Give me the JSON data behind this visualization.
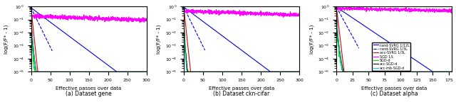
{
  "panels": [
    {
      "title": "(a) Dataset gene",
      "xlim": [
        0,
        300
      ],
      "ylim_log": [
        -5,
        0
      ],
      "xlabel": "Effective passes over data",
      "ylabel": "log(F/F* - 1)",
      "curves": [
        {
          "label": "rand-SVRG 1/12L",
          "color": "#0000dd",
          "style": "solid",
          "x_end": 300,
          "log_y0": -0.1,
          "log_slope": -0.022,
          "noise_sigma": 0.0,
          "high_noise": false
        },
        {
          "label": "rand-SVRG 1/3L",
          "color": "#0000dd",
          "style": "dashed",
          "x_end": 55,
          "log_y0": -0.1,
          "log_slope": -0.06,
          "noise_sigma": 0.0,
          "high_noise": false
        },
        {
          "label": "acc-SVRG 1/3L",
          "color": "#dd0000",
          "style": "solid",
          "x_end": 18,
          "log_y0": -0.1,
          "log_slope": -0.28,
          "noise_sigma": 0.0,
          "high_noise": false
        },
        {
          "label": "SGD 1/L",
          "color": "#ff00ff",
          "style": "solid",
          "x_end": 300,
          "log_y0": -0.75,
          "log_slope": -0.001,
          "noise_sigma": 0.08,
          "high_noise": true
        },
        {
          "label": "SGD-d",
          "color": "#00dd00",
          "style": "solid",
          "x_end": 300,
          "log_y0": -0.05,
          "log_slope": -0.009,
          "noise_sigma": 0.18,
          "high_noise": true,
          "plaw": true,
          "plaw_exp": 0.5
        },
        {
          "label": "acc-SGD-d",
          "color": "#000000",
          "style": "solid",
          "x_end": 300,
          "log_y0": -0.05,
          "log_slope": -0.009,
          "noise_sigma": 0.01,
          "high_noise": false,
          "plaw": true,
          "plaw_exp": 0.55
        },
        {
          "label": "acc-mb-SGD-d",
          "color": "#00cccc",
          "style": "solid",
          "x_end": 300,
          "log_y0": -0.05,
          "log_slope": -0.011,
          "noise_sigma": 0.01,
          "high_noise": false,
          "plaw": true,
          "plaw_exp": 0.6
        }
      ]
    },
    {
      "title": "(b) Dataset ckn-cifar",
      "xlim": [
        0,
        300
      ],
      "ylim_log": [
        -5,
        0
      ],
      "xlabel": "Effective passes over data",
      "ylabel": "log(F/F* - 1)",
      "curves": [
        {
          "label": "rand-SVRG 1/12L",
          "color": "#0000dd",
          "style": "solid",
          "x_end": 300,
          "log_y0": -0.05,
          "log_slope": -0.022,
          "noise_sigma": 0.0,
          "high_noise": false
        },
        {
          "label": "rand-SVRG 1/3L",
          "color": "#0000dd",
          "style": "dashed",
          "x_end": 55,
          "log_y0": -0.05,
          "log_slope": -0.06,
          "noise_sigma": 0.0,
          "high_noise": false
        },
        {
          "label": "acc-SVRG 1/3L",
          "color": "#dd0000",
          "style": "solid",
          "x_end": 18,
          "log_y0": -0.05,
          "log_slope": -0.28,
          "noise_sigma": 0.0,
          "high_noise": false
        },
        {
          "label": "SGD 1/L",
          "color": "#ff00ff",
          "style": "solid",
          "x_end": 300,
          "log_y0": -0.35,
          "log_slope": -0.001,
          "noise_sigma": 0.07,
          "high_noise": true
        },
        {
          "label": "SGD-d",
          "color": "#00dd00",
          "style": "solid",
          "x_end": 300,
          "log_y0": -0.1,
          "log_slope": -0.009,
          "noise_sigma": 0.2,
          "high_noise": true,
          "plaw": true,
          "plaw_exp": 0.5
        },
        {
          "label": "acc-SGD-d",
          "color": "#000000",
          "style": "solid",
          "x_end": 300,
          "log_y0": -0.1,
          "log_slope": -0.009,
          "noise_sigma": 0.01,
          "high_noise": false,
          "plaw": true,
          "plaw_exp": 0.5
        },
        {
          "label": "acc-mb-SGD-d",
          "color": "#00cccc",
          "style": "solid",
          "x_end": 300,
          "log_y0": -0.1,
          "log_slope": -0.012,
          "noise_sigma": 0.01,
          "high_noise": false,
          "plaw": true,
          "plaw_exp": 0.55
        }
      ]
    },
    {
      "title": "(c) Dataset alpha",
      "xlim": [
        0,
        180
      ],
      "ylim_log": [
        -5,
        0
      ],
      "xlabel": "Effective passes over data",
      "ylabel": "log(F/F* - 1)",
      "curves": [
        {
          "label": "rand-SVRG 1/12L",
          "color": "#0000dd",
          "style": "solid",
          "x_end": 180,
          "log_y0": -0.05,
          "log_slope": -0.033,
          "noise_sigma": 0.0,
          "high_noise": false
        },
        {
          "label": "rand-SVRG 1/3L",
          "color": "#0000dd",
          "style": "dashed",
          "x_end": 35,
          "log_y0": -0.05,
          "log_slope": -0.09,
          "noise_sigma": 0.0,
          "high_noise": false
        },
        {
          "label": "acc-SVRG 1/3L",
          "color": "#dd0000",
          "style": "solid",
          "x_end": 12,
          "log_y0": -0.05,
          "log_slope": -0.42,
          "noise_sigma": 0.0,
          "high_noise": false
        },
        {
          "label": "SGD 1/L",
          "color": "#ff00ff",
          "style": "solid",
          "x_end": 180,
          "log_y0": -0.15,
          "log_slope": -0.001,
          "noise_sigma": 0.06,
          "high_noise": true
        },
        {
          "label": "SGD-d",
          "color": "#00dd00",
          "style": "solid",
          "x_end": 180,
          "log_y0": -0.05,
          "log_slope": -0.012,
          "noise_sigma": 0.2,
          "high_noise": true,
          "plaw": true,
          "plaw_exp": 0.5
        },
        {
          "label": "acc-SGD-d",
          "color": "#000000",
          "style": "solid",
          "x_end": 180,
          "log_y0": -0.05,
          "log_slope": -0.012,
          "noise_sigma": 0.01,
          "high_noise": false,
          "plaw": true,
          "plaw_exp": 0.52
        },
        {
          "label": "acc-mb-SGD-d",
          "color": "#00cccc",
          "style": "solid",
          "x_end": 180,
          "log_y0": -0.05,
          "log_slope": -0.015,
          "noise_sigma": 0.01,
          "high_noise": false,
          "plaw": true,
          "plaw_exp": 0.58
        }
      ]
    }
  ],
  "legend_labels": [
    "rand-SVRG 1/12L",
    "rand-SVRG 1/3L",
    "acc-SVRG 1/3L",
    "SGD 1/L",
    "SGD-d",
    "acc-SGD-d",
    "acc-mb-SGD-d"
  ],
  "legend_colors": [
    "#0000dd",
    "#0000dd",
    "#dd0000",
    "#ff00ff",
    "#00dd00",
    "#000000",
    "#00cccc"
  ],
  "legend_styles": [
    "solid",
    "dashed",
    "solid",
    "solid",
    "solid",
    "solid",
    "solid"
  ]
}
